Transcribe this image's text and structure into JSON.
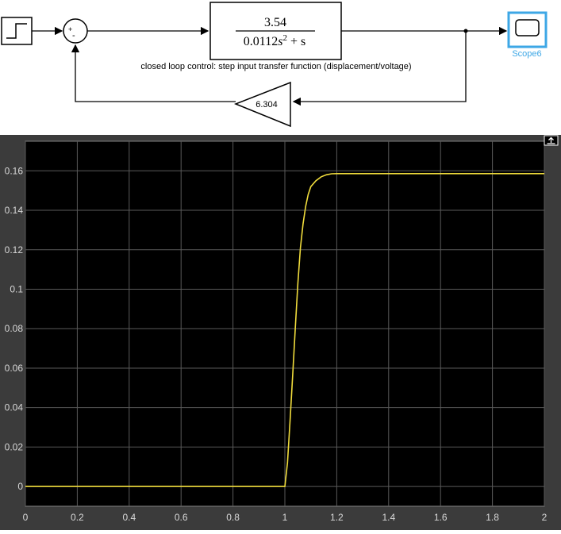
{
  "diagram": {
    "transfer_function": {
      "numerator": "3.54",
      "denominator_coef": "0.0112",
      "denominator_var": "s",
      "denominator_exp": "2",
      "denominator_tail": " + s"
    },
    "gain_value": "6.304",
    "caption": "closed loop control: step input transfer function (displacement/voltage)",
    "scope_label": "Scope6",
    "sum_signs": {
      "plus": "+",
      "minus": "-"
    },
    "colors": {
      "scope_accent": "#3da7e6",
      "block_border": "#000000"
    }
  },
  "scope": {
    "colors": {
      "background": "#000000",
      "frame": "#3b3b3b",
      "grid": "#5a5a5a",
      "trace": "#f0dc3c",
      "ticks": "#d8d8d8"
    },
    "restore_icon": "restore-axes-icon"
  },
  "chart_data": {
    "type": "line",
    "title": "",
    "xlabel": "",
    "ylabel": "",
    "xlim": [
      0,
      2
    ],
    "ylim": [
      -0.01,
      0.175
    ],
    "grid": true,
    "x_ticks": [
      "0",
      "0.2",
      "0.4",
      "0.6",
      "0.8",
      "1",
      "1.2",
      "1.4",
      "1.6",
      "1.8",
      "2"
    ],
    "y_ticks": [
      "0",
      "0.02",
      "0.04",
      "0.06",
      "0.08",
      "0.1",
      "0.12",
      "0.14",
      "0.16"
    ],
    "series": [
      {
        "x": [
          0,
          1.0,
          1.01,
          1.02,
          1.03,
          1.04,
          1.05,
          1.06,
          1.07,
          1.08,
          1.09,
          1.1,
          1.12,
          1.14,
          1.16,
          1.18,
          1.2,
          1.25,
          1.3,
          1.5,
          2.0
        ],
        "y": [
          0,
          0,
          0.012,
          0.033,
          0.056,
          0.08,
          0.103,
          0.121,
          0.133,
          0.142,
          0.148,
          0.152,
          0.155,
          0.157,
          0.158,
          0.1585,
          0.1586,
          0.1586,
          0.1586,
          0.1586,
          0.1586
        ]
      }
    ]
  }
}
